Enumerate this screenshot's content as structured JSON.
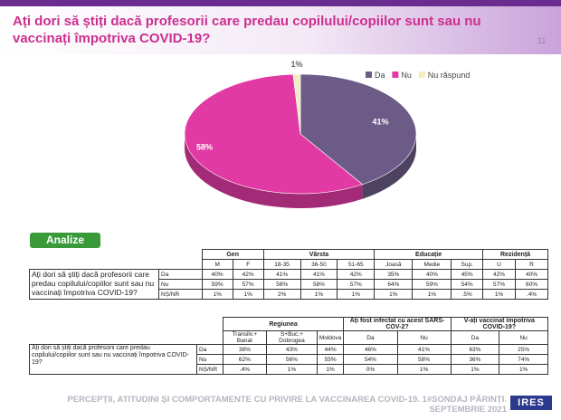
{
  "header": {
    "title": "Ați dori să știți dacă profesorii care predau copilului/copiilor sunt sau nu vaccinați împotriva COVID-19?",
    "page_number": "11"
  },
  "chart_data": {
    "type": "pie",
    "style": "3d",
    "legend_placement": "top-right",
    "slices": [
      {
        "label": "Da",
        "value": 41,
        "value_label": "41%",
        "color": "#6b5b86"
      },
      {
        "label": "Nu",
        "value": 58,
        "value_label": "58%",
        "color": "#e23aa4"
      },
      {
        "label": "Nu răspund",
        "value": 1,
        "value_label": "1%",
        "color": "#f4ecc0"
      }
    ]
  },
  "analize_label": "Analize",
  "table1": {
    "group_headers": [
      "Gen",
      "Vârsta",
      "Educație",
      "Rezidență"
    ],
    "columns": [
      "M",
      "F",
      "18-35",
      "36-50",
      "51-65",
      "Joasă",
      "Medie",
      "Sup.",
      "U",
      "R"
    ],
    "question": "Ați dori să știți dacă profesorii care predau copilului/copiilor sunt sau nu vaccinați împotriva COVID-19?",
    "rows": [
      {
        "label": "Da",
        "values": [
          "40%",
          "42%",
          "41%",
          "41%",
          "42%",
          "35%",
          "40%",
          "45%",
          "42%",
          "40%"
        ]
      },
      {
        "label": "Nu",
        "values": [
          "59%",
          "57%",
          "58%",
          "58%",
          "57%",
          "64%",
          "59%",
          "54%",
          "57%",
          "60%"
        ]
      },
      {
        "label": "NȘ/NR",
        "values": [
          "1%",
          "1%",
          "2%",
          "1%",
          "1%",
          "1%",
          "1%",
          ".5%",
          "1%",
          ".4%"
        ]
      }
    ]
  },
  "table2": {
    "group_headers": [
      "Regiunea",
      "Ați fost infectat cu acest SARS-COV-2?",
      "V-ați vaccinat împotriva COVID-19?"
    ],
    "columns": [
      "Transilv.+ Banat",
      "S+Buc.+ Dobrogea",
      "Moldova",
      "Da",
      "Nu",
      "Da",
      "Nu"
    ],
    "question": "Ați dori să știți dacă profesorii care predau copilului/copiilor sunt sau nu vaccinați împotriva COVID-19?",
    "rows": [
      {
        "label": "Da",
        "values": [
          "38%",
          "43%",
          "44%",
          "46%",
          "41%",
          "63%",
          "25%"
        ]
      },
      {
        "label": "Nu",
        "values": [
          "62%",
          "56%",
          "55%",
          "54%",
          "58%",
          "36%",
          "74%"
        ]
      },
      {
        "label": "NȘ/NR",
        "values": [
          ".4%",
          "1%",
          "1%",
          "0%",
          "1%",
          "1%",
          "1%"
        ]
      }
    ]
  },
  "footer": {
    "line1": "PERCEPȚII, ATITUDINI ȘI COMPORTAMENTE CU PRIVIRE LA VACCINAREA COVID-19. 1#SONDAJ PĂRINȚI.",
    "line2": "SEPTEMBRIE 2021",
    "logo_text": "IRES"
  }
}
